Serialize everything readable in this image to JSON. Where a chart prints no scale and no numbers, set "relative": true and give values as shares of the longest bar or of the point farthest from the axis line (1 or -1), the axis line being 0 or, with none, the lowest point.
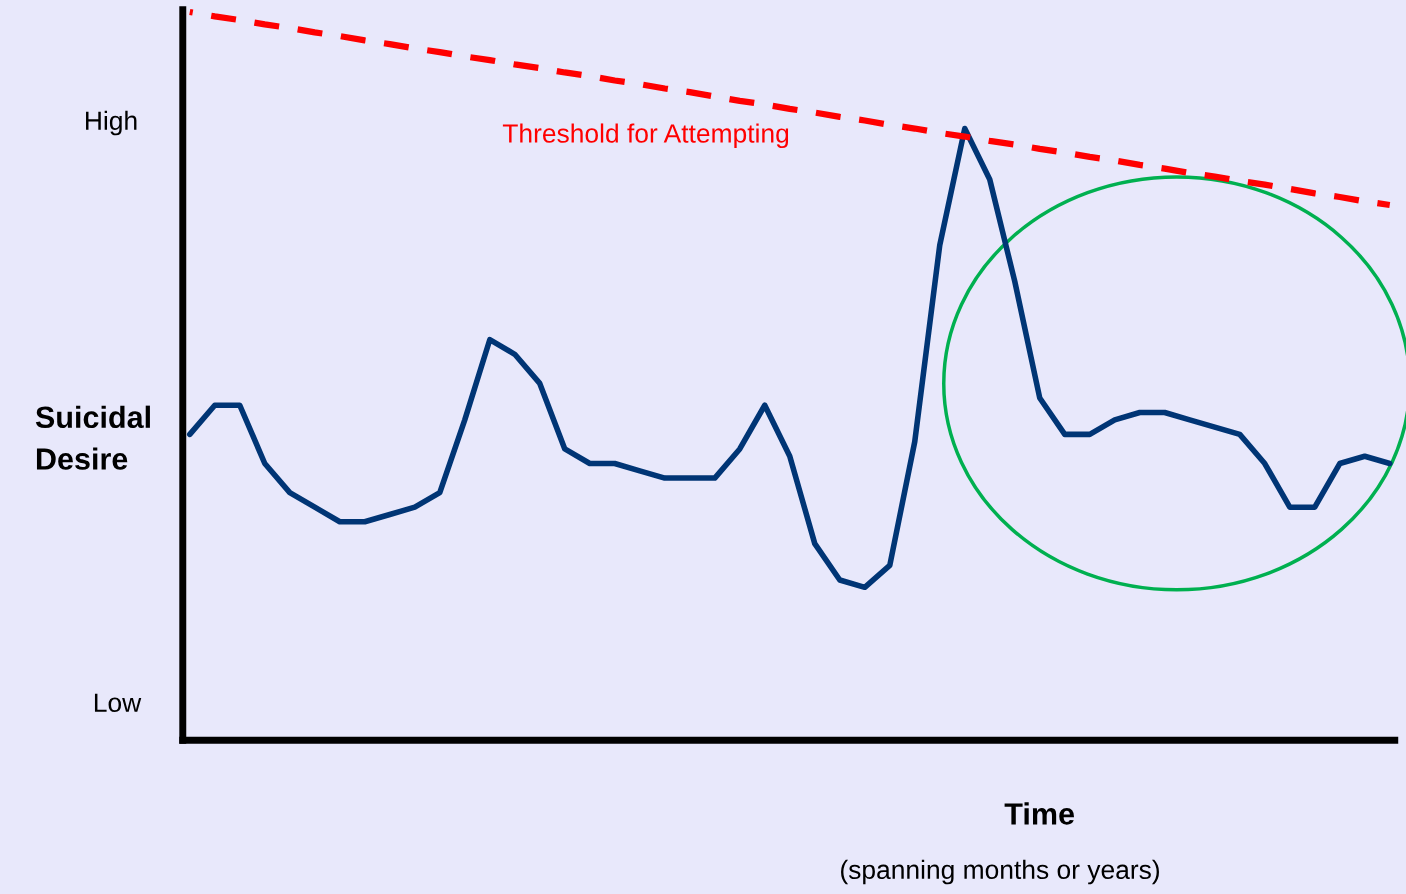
{
  "chart_data": {
    "type": "line",
    "ylabel": "Suicidal\nDesire",
    "xlabel": "Time",
    "annotations": [
      "High",
      "Low",
      "(spanning months or years)"
    ],
    "categories": [
      null,
      null,
      null,
      null,
      null,
      null,
      null,
      null,
      null,
      null,
      null,
      null,
      null,
      null,
      null,
      null,
      null,
      null,
      null,
      null,
      null,
      null,
      null,
      null,
      null,
      null,
      null,
      null,
      null,
      null,
      null,
      null,
      null,
      null,
      null,
      null,
      null,
      null,
      null,
      null,
      null,
      null,
      null,
      null,
      null,
      null,
      null,
      null,
      null
    ],
    "relative": true,
    "grid": false,
    "legend": false,
    "marker": "none",
    "series": [
      {
        "color": "#003575",
        "line_style": "solid",
        "values": [
          0.42,
          0.46,
          0.46,
          0.38,
          0.34,
          0.32,
          0.3,
          0.3,
          0.31,
          0.32,
          0.34,
          0.44,
          0.55,
          0.53,
          0.49,
          0.4,
          0.38,
          0.38,
          0.37,
          0.36,
          0.36,
          0.36,
          0.4,
          0.46,
          0.39,
          0.27,
          0.22,
          0.21,
          0.24,
          0.41,
          0.68,
          0.84,
          0.77,
          0.63,
          0.47,
          0.42,
          0.42,
          0.44,
          0.45,
          0.45,
          0.44,
          0.43,
          0.42,
          0.38,
          0.32,
          0.32,
          0.38,
          0.39,
          0.38
        ]
      },
      {
        "name": "Threshold for Attempting",
        "color": "#ff0000",
        "line_style": "dashed",
        "values": [
          1.0,
          0.994,
          0.989,
          0.983,
          0.978,
          0.972,
          0.967,
          0.961,
          0.956,
          0.95,
          0.945,
          0.939,
          0.934,
          0.928,
          0.923,
          0.917,
          0.912,
          0.906,
          0.901,
          0.895,
          0.89,
          0.884,
          0.878,
          0.873,
          0.867,
          0.862,
          0.856,
          0.851,
          0.845,
          0.84,
          0.834,
          0.829,
          0.823,
          0.818,
          0.812,
          0.807,
          0.801,
          0.796,
          0.79,
          0.785,
          0.779,
          0.774,
          0.768,
          0.763,
          0.757,
          0.751,
          0.746,
          0.74,
          0.735
        ]
      }
    ]
  }
}
